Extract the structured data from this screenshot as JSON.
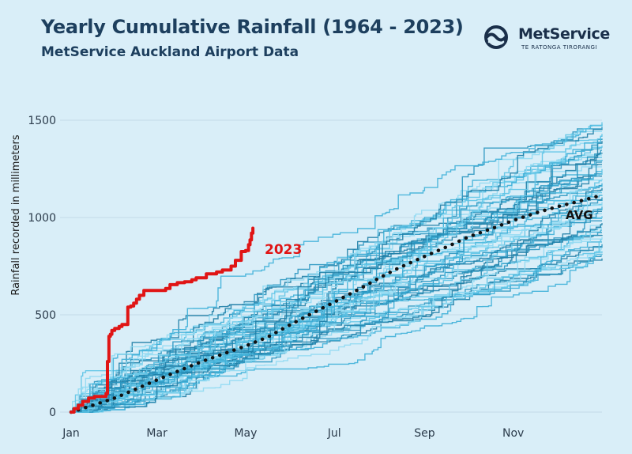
{
  "header": {
    "title": "Yearly Cumulative Rainfall (1964 - 2023)",
    "subtitle": "MetService Auckland Airport Data"
  },
  "brand": {
    "logo_icon": "metservice-swirl-icon",
    "name": "MetService",
    "tagline": "TE RATONGA TIRORANGI",
    "color": "#1a2f4a"
  },
  "colors": {
    "background": "#d9eef8",
    "historical_palette": [
      "#1f7ea6",
      "#2a96c0",
      "#3fb0d8",
      "#5fc4e6",
      "#8fd9f2"
    ],
    "highlight": "#e01515",
    "average": "#111111"
  },
  "chart_data": {
    "type": "line",
    "title": "Yearly Cumulative Rainfall (1964 - 2023)",
    "subtitle": "MetService Auckland Airport Data",
    "xlabel": "",
    "ylabel": "Rainfall recorded in millimeters",
    "x_unit": "day-of-year",
    "xlim": [
      0,
      365
    ],
    "ylim": [
      0,
      1500
    ],
    "x_ticks": [
      {
        "label": "Jan",
        "day": 0
      },
      {
        "label": "Mar",
        "day": 59
      },
      {
        "label": "May",
        "day": 120
      },
      {
        "label": "Jul",
        "day": 181
      },
      {
        "label": "Sep",
        "day": 243
      },
      {
        "label": "Nov",
        "day": 304
      }
    ],
    "y_ticks": [
      0,
      500,
      1000,
      1500
    ],
    "grid": "horizontal",
    "historical_years": {
      "count": 59,
      "year_end_min": 790,
      "year_end_max": 1490
    },
    "highlight_series": {
      "name": "2023",
      "x": [
        0,
        2,
        5,
        8,
        12,
        16,
        20,
        24,
        25,
        26,
        27,
        28,
        30,
        33,
        35,
        37,
        39,
        41,
        43,
        45,
        47,
        50,
        55,
        60,
        65,
        68,
        73,
        78,
        83,
        86,
        93,
        100,
        104,
        110,
        113,
        117,
        120,
        122,
        123,
        124,
        125
      ],
      "y": [
        0,
        18,
        35,
        55,
        72,
        80,
        80,
        95,
        260,
        390,
        400,
        420,
        430,
        440,
        450,
        450,
        540,
        545,
        560,
        580,
        600,
        625,
        625,
        625,
        635,
        655,
        665,
        670,
        680,
        690,
        710,
        720,
        730,
        750,
        780,
        825,
        830,
        860,
        885,
        920,
        945
      ]
    },
    "average_series": {
      "name": "AVG",
      "x": [
        0,
        15,
        31,
        45,
        59,
        75,
        90,
        105,
        120,
        135,
        151,
        165,
        181,
        200,
        212,
        225,
        243,
        260,
        273,
        290,
        304,
        320,
        334,
        350,
        365
      ],
      "y": [
        0,
        35,
        75,
        120,
        165,
        215,
        260,
        300,
        340,
        385,
        450,
        505,
        565,
        640,
        690,
        740,
        800,
        855,
        900,
        945,
        985,
        1025,
        1055,
        1085,
        1115
      ]
    }
  }
}
